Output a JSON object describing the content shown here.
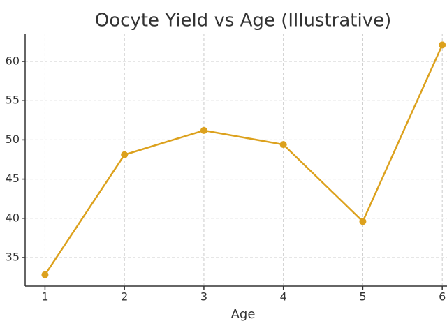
{
  "chart_data": {
    "type": "line",
    "title": "Oocyte Yield vs Age (Illustrative)",
    "x_label": "Age",
    "x": [
      1,
      2,
      3,
      4,
      5,
      6
    ],
    "values": [
      32.8,
      48.1,
      51.2,
      49.4,
      39.6,
      62.1
    ],
    "color": "#dca11d",
    "xlim": [
      0.75,
      6.06
    ],
    "xticks": [
      1,
      2,
      3,
      4,
      5,
      6
    ],
    "ylim": [
      31.35,
      63.56
    ],
    "yticks": [
      35,
      40,
      45,
      50,
      55,
      60
    ],
    "grid": true
  }
}
